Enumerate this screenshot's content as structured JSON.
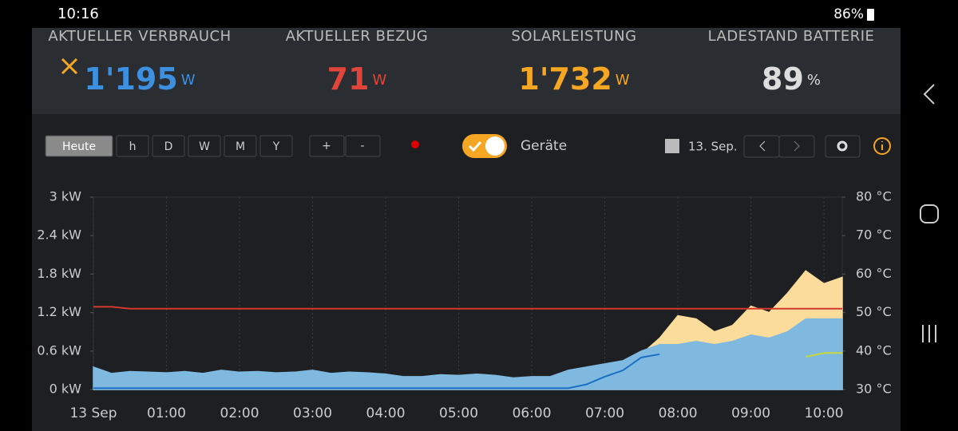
{
  "status_bar": {
    "time": "10:16",
    "battery": "86%"
  },
  "metrics": [
    {
      "label": "AKTUELLER VERBRAUCH",
      "value": "1'195",
      "unit": "W"
    },
    {
      "label": "AKTUELLER BEZUG",
      "value": "71",
      "unit": "W"
    },
    {
      "label": "SOLARLEISTUNG",
      "value": "1'732",
      "unit": "W"
    },
    {
      "label": "LADESTAND BATTERIE",
      "value": "89",
      "unit": "%"
    }
  ],
  "toolbar": {
    "ranges": [
      "Heute",
      "h",
      "D",
      "W",
      "M",
      "Y"
    ],
    "zoom": [
      "+",
      "-"
    ],
    "toggle_label": "Geräte",
    "date": "13. Sep."
  },
  "chart_data": {
    "type": "area",
    "x": [
      0,
      0.25,
      0.5,
      0.75,
      1,
      1.25,
      1.5,
      1.75,
      2,
      2.25,
      2.5,
      2.75,
      3,
      3.25,
      3.5,
      3.75,
      4,
      4.25,
      4.5,
      4.75,
      5,
      5.25,
      5.5,
      5.75,
      6,
      6.25,
      6.5,
      6.75,
      7,
      7.25,
      7.5,
      7.75,
      8,
      8.25,
      8.5,
      8.75,
      9,
      9.25,
      9.5,
      9.75,
      10,
      10.25
    ],
    "series": [
      {
        "kind": "area",
        "color": "#fcdc9a",
        "values": [
          0,
          0,
          0,
          0,
          0,
          0,
          0,
          0,
          0,
          0,
          0,
          0,
          0,
          0,
          0,
          0,
          0,
          0,
          0,
          0,
          0,
          0,
          0,
          0,
          0,
          0,
          0.05,
          0.15,
          0.3,
          0.4,
          0.55,
          0.8,
          1.15,
          1.1,
          0.9,
          1.0,
          1.3,
          1.2,
          1.5,
          1.85,
          1.65,
          1.75
        ]
      },
      {
        "kind": "area",
        "color": "#7fb9e0",
        "values": [
          0.35,
          0.25,
          0.28,
          0.27,
          0.26,
          0.28,
          0.25,
          0.3,
          0.27,
          0.28,
          0.26,
          0.27,
          0.3,
          0.25,
          0.27,
          0.26,
          0.24,
          0.2,
          0.2,
          0.23,
          0.22,
          0.24,
          0.22,
          0.18,
          0.2,
          0.2,
          0.3,
          0.35,
          0.4,
          0.45,
          0.6,
          0.7,
          0.7,
          0.75,
          0.7,
          0.75,
          0.85,
          0.8,
          0.9,
          1.1,
          1.1,
          1.1
        ]
      },
      {
        "kind": "line",
        "color": "#1a6fc4",
        "values": [
          0.02,
          0.02,
          0.02,
          0.02,
          0.02,
          0.02,
          0.02,
          0.02,
          0.02,
          0.02,
          0.02,
          0.02,
          0.02,
          0.02,
          0.02,
          0.02,
          0.02,
          0.02,
          0.02,
          0.02,
          0.02,
          0.02,
          0.02,
          0.02,
          0.02,
          0.02,
          0.02,
          0.08,
          0.2,
          0.3,
          0.5,
          0.55,
          null,
          null,
          null,
          null,
          null,
          null,
          null,
          null,
          null,
          null
        ]
      },
      {
        "kind": "line",
        "axis": "y2",
        "color": "#d33a2c",
        "values": [
          51.5,
          51.5,
          51,
          51,
          51,
          51,
          51,
          51,
          51,
          51,
          51,
          51,
          51,
          51,
          51,
          51,
          51,
          51,
          51,
          51,
          51,
          51,
          51,
          51,
          51,
          51,
          51,
          51,
          51,
          51,
          51,
          51,
          51,
          51,
          51,
          51,
          51,
          51,
          51,
          51,
          51,
          51
        ]
      },
      {
        "kind": "line",
        "axis": "y2",
        "color": "#c8d83a",
        "values": [
          null,
          null,
          null,
          null,
          null,
          null,
          null,
          null,
          null,
          null,
          null,
          null,
          null,
          null,
          null,
          null,
          null,
          null,
          null,
          null,
          null,
          null,
          null,
          null,
          null,
          null,
          null,
          null,
          null,
          null,
          null,
          null,
          null,
          null,
          null,
          null,
          null,
          null,
          null,
          38.5,
          39.5,
          39.5
        ]
      }
    ],
    "xlim": [
      0,
      10.25
    ],
    "xticks": [
      {
        "value": 0,
        "label": "13 Sep"
      },
      {
        "value": 1,
        "label": "01:00"
      },
      {
        "value": 2,
        "label": "02:00"
      },
      {
        "value": 3,
        "label": "03:00"
      },
      {
        "value": 4,
        "label": "04:00"
      },
      {
        "value": 5,
        "label": "05:00"
      },
      {
        "value": 6,
        "label": "06:00"
      },
      {
        "value": 7,
        "label": "07:00"
      },
      {
        "value": 8,
        "label": "08:00"
      },
      {
        "value": 9,
        "label": "09:00"
      },
      {
        "value": 10,
        "label": "10:00"
      }
    ],
    "ylim": [
      0,
      3
    ],
    "yticks": [
      {
        "value": 0,
        "label": "0 kW"
      },
      {
        "value": 0.6,
        "label": "0.6 kW"
      },
      {
        "value": 1.2,
        "label": "1.2 kW"
      },
      {
        "value": 1.8,
        "label": "1.8 kW"
      },
      {
        "value": 2.4,
        "label": "2.4 kW"
      },
      {
        "value": 3,
        "label": "3 kW"
      }
    ],
    "y2lim": [
      30,
      80
    ],
    "y2ticks": [
      {
        "value": 30,
        "label": "30 °C"
      },
      {
        "value": 40,
        "label": "40 °C"
      },
      {
        "value": 50,
        "label": "50 °C"
      },
      {
        "value": 60,
        "label": "60 °C"
      },
      {
        "value": 70,
        "label": "70 °C"
      },
      {
        "value": 80,
        "label": "80 °C"
      }
    ],
    "grid": true
  }
}
